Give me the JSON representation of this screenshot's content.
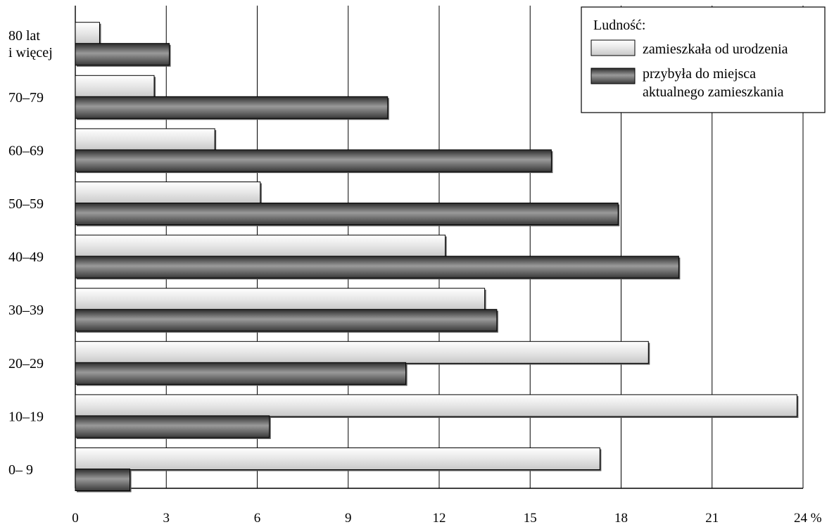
{
  "chart_data": {
    "type": "bar",
    "orientation": "horizontal",
    "categories": [
      "0– 9",
      "10–19",
      "20–29",
      "30–39",
      "40–49",
      "50–59",
      "60–69",
      "70–79",
      "80 lat\ni więcej"
    ],
    "series": [
      {
        "name": "zamieszkała od urodzenia",
        "values": [
          17.3,
          23.8,
          18.9,
          13.5,
          12.2,
          6.1,
          4.6,
          2.6,
          0.8
        ],
        "color": "#ededed"
      },
      {
        "name": "przybyła do miejsca\naktualnego zamieszkania",
        "values": [
          1.8,
          6.4,
          10.9,
          13.9,
          19.9,
          17.9,
          15.7,
          10.3,
          3.1
        ],
        "color": "#7a7a7a"
      }
    ],
    "xticks": [
      "0",
      "3",
      "6",
      "9",
      "12",
      "15",
      "18",
      "21",
      "24 %"
    ],
    "xtick_values": [
      0,
      3,
      6,
      9,
      12,
      15,
      18,
      21,
      24
    ],
    "xlim": [
      0,
      24
    ],
    "legend": {
      "title": "Ludność:",
      "position": "top-right"
    },
    "grid": "vertical"
  }
}
